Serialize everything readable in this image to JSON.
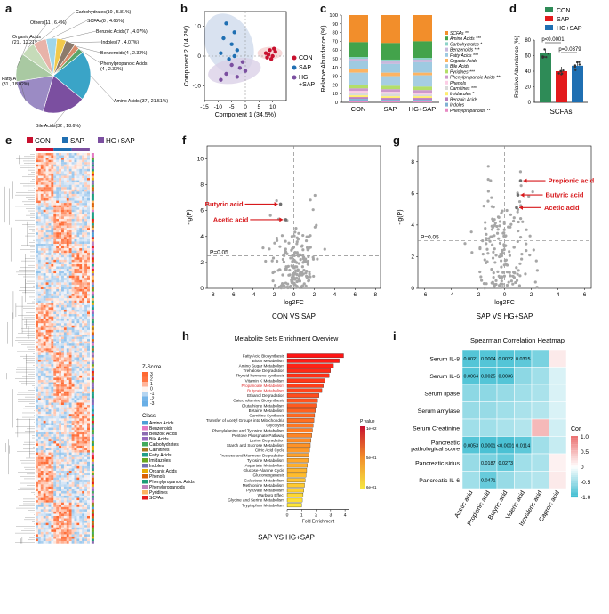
{
  "panel_letters": {
    "a": "a",
    "b": "b",
    "c": "c",
    "d": "d",
    "e": "e",
    "f": "f",
    "g": "g",
    "h": "h",
    "i": "i"
  },
  "colors": {
    "con": "#c8102e",
    "sap": "#1f6fb2",
    "hg": "#7b4fa0",
    "red": "#d7191c"
  },
  "chart_data": [
    {
      "id": "a",
      "type": "pie",
      "labels": [
        "Amino Acids (37 , 21.51%)",
        "Bile Acids(32 , 18.6%)",
        "Fatty Acids (31 , 18.02%)",
        "Organic Acids (21 , 12.21%)",
        "Others(11 , 6.4%)",
        "Carbohydrates(10 , 5.81%)",
        "SCFAs(8 , 4.65%)",
        "Benzoic Acids(7 , 4.07%)",
        "Indoles(7 , 4.07%)",
        "Benzenoids(4 , 2.33%)",
        "Phenylpropanoic Acids (4 , 2.33%)"
      ],
      "values": [
        37,
        32,
        31,
        21,
        11,
        10,
        8,
        7,
        7,
        4,
        4
      ],
      "colors": [
        "#3aa4c7",
        "#7b4fa0",
        "#9b8bc4",
        "#a9c9a2",
        "#c6dbb9",
        "#e8b3a9",
        "#9fd6ea",
        "#f2c94c",
        "#8c7a6b",
        "#d88c6b",
        "#5aa469"
      ]
    },
    {
      "id": "b",
      "type": "scatter",
      "xlabel": "Component 1 (34.5%)",
      "ylabel": "Component 2 (14.2%)",
      "xticks": [
        "-15",
        "-10",
        "-5",
        "0",
        "5",
        "10"
      ],
      "yticks": [
        "10",
        "0",
        "-10"
      ],
      "xlim": [
        -15,
        15
      ],
      "ylim": [
        -15,
        15
      ],
      "legend": [
        "CON",
        "SAP",
        "HG\n+SAP"
      ],
      "series": [
        {
          "name": "CON",
          "points": [
            [
              7.5,
              1
            ],
            [
              8.5,
              0.5
            ],
            [
              9,
              2
            ],
            [
              10,
              0
            ],
            [
              11,
              1.5
            ],
            [
              9.5,
              -1
            ],
            [
              8,
              -0.5
            ],
            [
              10.5,
              2.5
            ]
          ]
        },
        {
          "name": "SAP",
          "points": [
            [
              -7,
              11
            ],
            [
              -4,
              8
            ],
            [
              -8,
              6
            ],
            [
              -5,
              4
            ],
            [
              -3,
              2
            ],
            [
              -9,
              1
            ],
            [
              -6,
              -1
            ],
            [
              -4,
              0
            ]
          ]
        },
        {
          "name": "HG+SAP",
          "points": [
            [
              -2,
              -4
            ],
            [
              -5,
              -3
            ],
            [
              -1,
              -2
            ],
            [
              -7,
              -6
            ],
            [
              0,
              -5
            ],
            [
              -3,
              -7
            ],
            [
              -9,
              -8
            ]
          ]
        }
      ]
    },
    {
      "id": "c",
      "type": "bar",
      "stacked": true,
      "categories": [
        "CON",
        "SAP",
        "HG+SAP"
      ],
      "ylabel": "Relative Abundance (%)",
      "yticks": [
        "0",
        "10",
        "20",
        "30",
        "40",
        "50",
        "60",
        "70",
        "80",
        "90",
        "100"
      ],
      "legend": [
        "SCFAs **",
        "Amino Acids ***",
        "Carbohydrates *",
        "Benzenoids ***",
        "Fatty Acids ***",
        "Organic Acids",
        "Bile Acids",
        "Pyridines ***",
        "Phenylpropanoic Acids ***",
        "Phenols",
        "Carnitines ***",
        "Imidazoles *",
        "Benzoic Acids",
        "Indoles",
        "Phenylpropanoids **"
      ],
      "series": [
        {
          "name": "SCFAs",
          "values": [
            31,
            32,
            30
          ],
          "color": "#f28e2b"
        },
        {
          "name": "Amino Acids",
          "values": [
            17,
            19,
            19
          ],
          "color": "#43a34b"
        },
        {
          "name": "Carbohydrates",
          "values": [
            2,
            2,
            2
          ],
          "color": "#8dd3c7"
        },
        {
          "name": "Benzenoids",
          "values": [
            3,
            3,
            3
          ],
          "color": "#c8b8dc"
        },
        {
          "name": "Fatty Acids",
          "values": [
            9,
            10,
            12
          ],
          "color": "#9ecae1"
        },
        {
          "name": "Organic Acids",
          "values": [
            4,
            4,
            3
          ],
          "color": "#fdb462"
        },
        {
          "name": "Bile Acids",
          "values": [
            14,
            11,
            13
          ],
          "color": "#a6cee3"
        },
        {
          "name": "Pyridines",
          "values": [
            4,
            4,
            4
          ],
          "color": "#b3de69"
        },
        {
          "name": "Phenylpropanoic Acids",
          "values": [
            3,
            3,
            3
          ],
          "color": "#cc99cc"
        },
        {
          "name": "Phenols",
          "values": [
            2,
            2,
            2
          ],
          "color": "#fccde5"
        },
        {
          "name": "Carnitines",
          "values": [
            3,
            3,
            2
          ],
          "color": "#d9d9d9"
        },
        {
          "name": "Imidazoles",
          "values": [
            2,
            2,
            2
          ],
          "color": "#ffed6f"
        },
        {
          "name": "Benzoic Acids",
          "values": [
            2,
            2,
            2
          ],
          "color": "#bc80bd"
        },
        {
          "name": "Indoles",
          "values": [
            2,
            2,
            2
          ],
          "color": "#80b1d3"
        },
        {
          "name": "Phenylpropanoids",
          "values": [
            2,
            1,
            1
          ],
          "color": "#e78ac3"
        }
      ]
    },
    {
      "id": "d",
      "type": "bar",
      "categories": [
        "CON",
        "SAP",
        "HG+SAP"
      ],
      "values": [
        63,
        40,
        47
      ],
      "xlabel": "SCFAs",
      "ylabel": "Relative Abundance (%)",
      "ylim": [
        0,
        80
      ],
      "yticks": [
        "0",
        "20",
        "40",
        "60",
        "80"
      ],
      "legend": [
        "CON",
        "SAP",
        "HG+SAP"
      ],
      "annotations": [
        "p<0.0001",
        "p=0.0379"
      ]
    },
    {
      "id": "f",
      "type": "scatter",
      "title_bottom": "CON VS SAP",
      "xlabel": "log2FC",
      "ylabel": "-lg(P)",
      "xticks": [
        "-8",
        "-6",
        "-4",
        "-2",
        "0",
        "2",
        "4",
        "6",
        "8"
      ],
      "yticks": [
        "0",
        "2",
        "4",
        "6",
        "8",
        "10"
      ],
      "xlim": [
        -8.5,
        8.5
      ],
      "ylim": [
        0,
        11
      ],
      "threshold_label": "P=0.05",
      "highlights": [
        {
          "label": "Butyric acid",
          "x": -1.3,
          "y": 6.5
        },
        {
          "label": "Acetic acid",
          "x": -0.8,
          "y": 5.3
        }
      ]
    },
    {
      "id": "g",
      "type": "scatter",
      "title_bottom": "SAP VS HG+SAP",
      "xlabel": "log2FC",
      "ylabel": "-lg(P)",
      "xticks": [
        "-6",
        "-4",
        "-2",
        "0",
        "2",
        "4",
        "6"
      ],
      "yticks": [
        "0",
        "2",
        "4",
        "6",
        "8"
      ],
      "xlim": [
        -6.5,
        6.5
      ],
      "ylim": [
        0,
        9
      ],
      "threshold_label": "P=0.05",
      "highlights": [
        {
          "label": "Propionic acid",
          "x": 1.2,
          "y": 6.8
        },
        {
          "label": "Butyric acid",
          "x": 1.0,
          "y": 5.9
        },
        {
          "label": "Acetic acid",
          "x": 0.9,
          "y": 5.1
        }
      ]
    },
    {
      "id": "h",
      "type": "bar",
      "orientation": "horizontal",
      "title": "Metabolite Sets Enrichment Overview",
      "xlabel": "Fold Enrichment",
      "xticks": [
        "0",
        "1",
        "2",
        "3",
        "4"
      ],
      "xlim": [
        0,
        4.3
      ],
      "bottom_label": "SAP VS HG+SAP",
      "colorbar": {
        "title": "P value",
        "ticks": [
          "1e-02",
          "5e-01",
          "6e-01"
        ]
      },
      "highlight_color": "#e03131",
      "categories": [
        "Fatty Acid Biosynthesis",
        "Biotin Metabolism",
        "Amino Sugar Metabolism",
        "Trehalose Degradation",
        "Thyroid hormone synthesis",
        "Vitamin K Metabolism",
        "Propanoate Metabolism",
        "Butyrate Metabolism",
        "Ethanol Degradation",
        "Catecholamine Biosynthesis",
        "Glutathione Metabolism",
        "Betaine Metabolism",
        "Carnitine Synthesis",
        "Transfer of Acetyl Groups into Mitochondria",
        "Glycolysis",
        "Phenylalanine and Tyrosine Metabolism",
        "Pentose Phosphate Pathway",
        "Lysine Degradation",
        "Starch and Sucrose Metabolism",
        "Citric Acid Cycle",
        "Fructose and Mannose Degradation",
        "Tyrosine Metabolism",
        "Aspartate Metabolism",
        "Glucose-Alanine Cycle",
        "Gluconeogenesis",
        "Galactose Metabolism",
        "Methionine Metabolism",
        "Pyruvate Metabolism",
        "Warburg Effect",
        "Glycine and Serine Metabolism",
        "Tryptophan Metabolism"
      ],
      "values": [
        3.9,
        3.6,
        3.2,
        3.0,
        2.9,
        2.6,
        2.5,
        2.4,
        2.2,
        2.1,
        2.0,
        1.95,
        1.9,
        1.85,
        1.8,
        1.75,
        1.7,
        1.65,
        1.6,
        1.55,
        1.5,
        1.45,
        1.4,
        1.35,
        1.3,
        1.25,
        1.2,
        1.15,
        1.1,
        1.05,
        1.0
      ],
      "highlighted": [
        "Propanoate Metabolism",
        "Butyrate Metabolism"
      ]
    },
    {
      "id": "i",
      "type": "heatmap",
      "title": "Spearman Correlation Heatmap",
      "rows": [
        "Serum IL-8",
        "Serum IL-6",
        "Serum lipase",
        "Serum amylase",
        "Serum Creatinine",
        "Pancreatic\npathological score",
        "Pancreatic sirius",
        "Pancreatic IL-6"
      ],
      "cols": [
        "Acetic acid",
        "Propionic acid",
        "Butyric acid",
        "Valeric acid",
        "Isovaleric acid",
        "Caproic acid"
      ],
      "values": [
        [
          -0.9,
          -0.9,
          -0.9,
          -0.85,
          -0.7,
          0.15
        ],
        [
          -0.9,
          -0.9,
          -0.9,
          -0.6,
          -0.5,
          -0.2
        ],
        [
          -0.6,
          -0.6,
          -0.55,
          -0.5,
          -0.45,
          -0.2
        ],
        [
          -0.55,
          -0.55,
          -0.5,
          -0.45,
          -0.4,
          -0.2
        ],
        [
          -0.5,
          -0.5,
          -0.45,
          -0.4,
          0.5,
          -0.25
        ],
        [
          -0.9,
          -0.95,
          -0.95,
          -0.85,
          -0.5,
          -0.3
        ],
        [
          -0.55,
          -0.7,
          -0.8,
          -0.5,
          -0.45,
          0.1
        ],
        [
          -0.5,
          -0.8,
          -0.55,
          -0.45,
          -0.4,
          0.15
        ]
      ],
      "cell_labels": [
        [
          "0.0021",
          "0.0004",
          "0.0022",
          "0.0315",
          "",
          ""
        ],
        [
          "0.0064",
          "0.0025",
          "0.0036",
          "",
          "",
          ""
        ],
        [
          "",
          "",
          "",
          "",
          "",
          ""
        ],
        [
          "",
          "",
          "",
          "",
          "",
          ""
        ],
        [
          "",
          "",
          "",
          "",
          "",
          ""
        ],
        [
          "0.0053",
          "0.0001",
          "<0.0001",
          "0.0114",
          "",
          ""
        ],
        [
          "",
          "0.0187",
          "0.0273",
          "",
          "",
          ""
        ],
        [
          "",
          "0.0471",
          "",
          "",
          "",
          ""
        ]
      ],
      "colorbar": {
        "title": "Cor",
        "ticks": [
          "1.0",
          "0.5",
          "0",
          "-0.5",
          "-1.0"
        ]
      }
    },
    {
      "id": "e",
      "type": "heatmap",
      "groups": [
        "CON",
        "SAP",
        "HG+SAP"
      ],
      "zscore_title": "Z-Score",
      "zscore_ticks": [
        "3",
        "2",
        "1",
        "0",
        "-1",
        "-2",
        "-3"
      ],
      "class_title": "Class",
      "classes": [
        "Amino Acids",
        "Benzenoids",
        "Benzoic Acids",
        "Bile Acids",
        "Carbohydrates",
        "Carnitines",
        "Fatty Acids",
        "Imidazoles",
        "Indoles",
        "Organic Acids",
        "Phenols",
        "Phenylpropanoic Acids",
        "Phenylpropanoids",
        "Pyridines",
        "SCFAs"
      ],
      "class_colors": [
        "#4c9fd6",
        "#e377c2",
        "#8c6bb1",
        "#9467bd",
        "#41ab5d",
        "#a6761d",
        "#1f9e89",
        "#66a61e",
        "#7570b3",
        "#e6ab02",
        "#d95f02",
        "#1b9e77",
        "#bc80bd",
        "#fdb462",
        "#e41a1c"
      ],
      "n_rows": 172,
      "n_cols": 21
    }
  ]
}
